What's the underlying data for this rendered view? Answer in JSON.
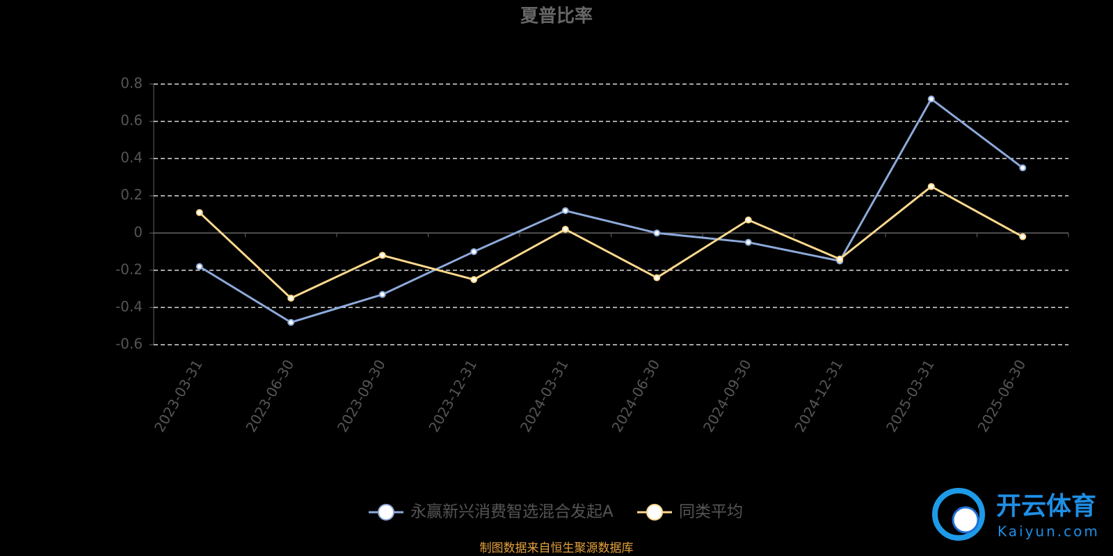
{
  "chart_data": {
    "type": "line",
    "title": "夏普比率",
    "categories": [
      "2023-03-31",
      "2023-06-30",
      "2023-09-30",
      "2023-12-31",
      "2024-03-31",
      "2024-06-30",
      "2024-09-30",
      "2024-12-31",
      "2025-03-31",
      "2025-06-30"
    ],
    "series": [
      {
        "name": "永赢新兴消费智选混合发起A",
        "color": "#8eaadb",
        "values": [
          -0.18,
          -0.48,
          -0.33,
          -0.1,
          0.12,
          0.0,
          -0.05,
          -0.15,
          0.72,
          0.35
        ]
      },
      {
        "name": "同类平均",
        "color": "#ffd98e",
        "values": [
          0.11,
          -0.35,
          -0.12,
          -0.25,
          0.02,
          -0.24,
          0.07,
          -0.14,
          0.25,
          -0.02
        ]
      }
    ],
    "ylim": [
      -0.6,
      0.8
    ],
    "yticks": [
      -0.6,
      -0.4,
      -0.2,
      0,
      0.2,
      0.4,
      0.6,
      0.8
    ],
    "grid": true,
    "legend": "bottom",
    "source": "制图数据来自恒生聚源数据库"
  },
  "watermark": {
    "brand": "开云体育",
    "site": "Kaiyun.com"
  }
}
